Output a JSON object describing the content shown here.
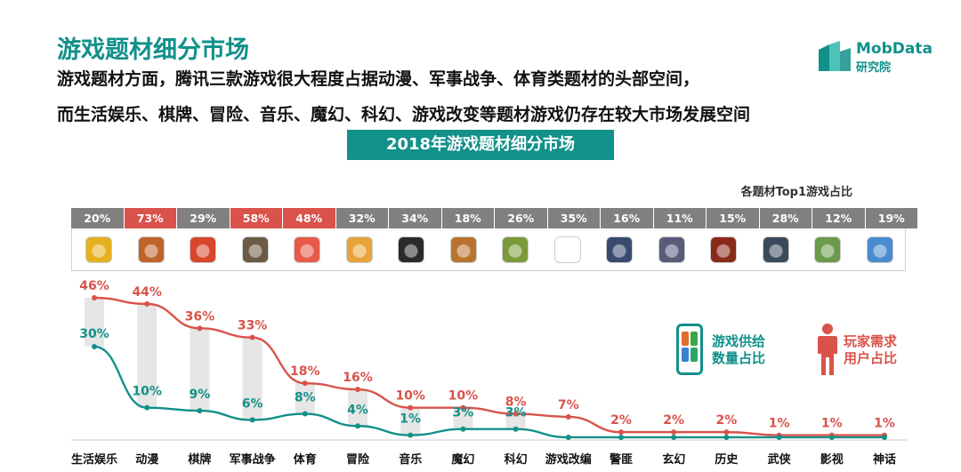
{
  "header": {
    "title": "游戏题材细分市场",
    "subtitle_line1": "游戏题材方面，腾讯三款游戏很大程度占据动漫、军事战争、体育类题材的头部空间，",
    "subtitle_line2": "而生活娱乐、棋牌、冒险、音乐、魔幻、科幻、游戏改变等题材游戏仍存在较大市场发展空间"
  },
  "logo": {
    "name": "MobData",
    "subtitle": "研究院",
    "color": "#12908a"
  },
  "banner": {
    "text": "2018年游戏题材细分市场"
  },
  "top1": {
    "label": "各题材Top1游戏占比",
    "percentages": [
      "20%",
      "73%",
      "29%",
      "58%",
      "48%",
      "32%",
      "34%",
      "18%",
      "26%",
      "35%",
      "16%",
      "11%",
      "15%",
      "28%",
      "12%",
      "19%"
    ],
    "highlighted": [
      1,
      3,
      4
    ],
    "icons": [
      "game-icon",
      "game-icon",
      "game-icon",
      "game-icon",
      "game-icon",
      "game-icon",
      "game-icon",
      "game-icon",
      "game-icon",
      "game-icon",
      "game-icon",
      "game-icon",
      "game-icon",
      "game-icon",
      "game-icon",
      "game-icon"
    ],
    "icon_colors": [
      "#e6b020",
      "#c0632a",
      "#d8452a",
      "#6b5a44",
      "#e85a4a",
      "#e7a43a",
      "#2a2a2a",
      "#b8742e",
      "#7a9a3a",
      "#ffffff",
      "#394a6e",
      "#5a5a7a",
      "#8a2a1a",
      "#3a4a5a",
      "#6a9a4a",
      "#4a8ad0"
    ]
  },
  "legend": {
    "supply_line1": "游戏供给",
    "supply_line2": "数量占比",
    "demand_line1": "玩家需求",
    "demand_line2": "用户占比"
  },
  "chart_data": {
    "type": "line",
    "categories": [
      "生活娱乐",
      "动漫",
      "棋牌",
      "军事战争",
      "体育",
      "冒险",
      "音乐",
      "魔幻",
      "科幻",
      "游戏改编",
      "警匪",
      "玄幻",
      "历史",
      "武侠",
      "影视",
      "神话"
    ],
    "series": [
      {
        "name": "玩家需求 用户占比",
        "color": "#d9534a",
        "values": [
          46,
          44,
          36,
          33,
          18,
          16,
          10,
          10,
          8,
          7,
          2,
          2,
          2,
          1,
          1,
          1
        ],
        "labels": [
          "46%",
          "44%",
          "36%",
          "33%",
          "18%",
          "16%",
          "10%",
          "10%",
          "8%",
          "7%",
          "2%",
          "2%",
          "2%",
          "1%",
          "1%",
          "1%"
        ]
      },
      {
        "name": "游戏供给 数量占比",
        "color": "#12908a",
        "values": [
          30,
          10,
          9,
          6,
          8,
          4,
          1,
          3,
          3,
          null,
          null,
          null,
          null,
          null,
          null,
          null
        ],
        "labels": [
          "30%",
          "10%",
          "9%",
          "6%",
          "8%",
          "4%",
          "1%",
          "3%",
          "3%",
          "",
          "",
          "",
          "",
          "",
          "",
          ""
        ]
      }
    ],
    "ylim": [
      0,
      50
    ],
    "grid": false
  }
}
